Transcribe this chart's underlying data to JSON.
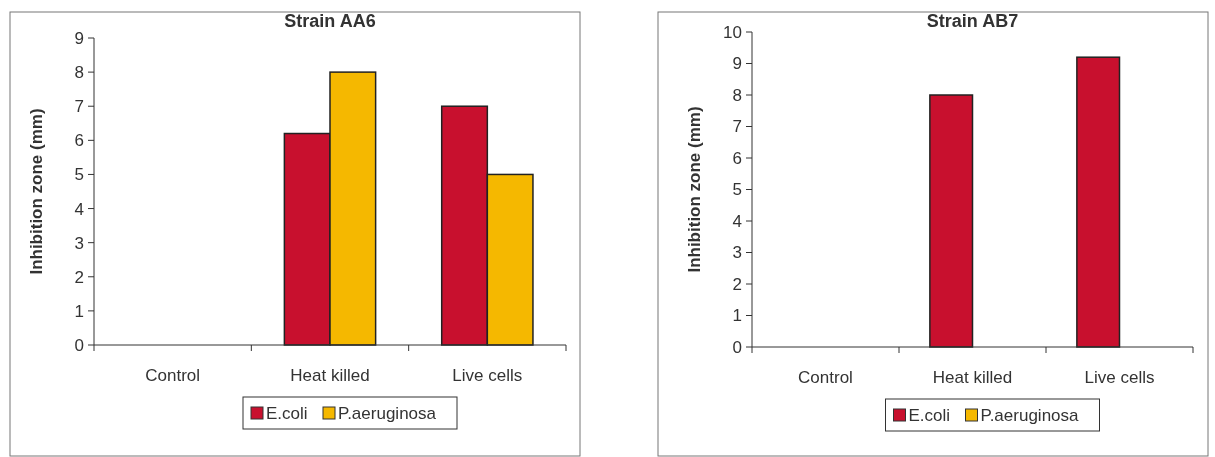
{
  "chart_data": [
    {
      "type": "bar",
      "title": "Strain AA6",
      "ylabel": "Inhibition zone (mm)",
      "categories": [
        "Control",
        "Heat killed",
        "Live cells"
      ],
      "series": [
        {
          "name": "E.coli",
          "color": "#c8102e",
          "values": [
            0,
            6.2,
            7.0
          ]
        },
        {
          "name": "P.aeruginosa",
          "color": "#f5b800",
          "values": [
            0,
            8.0,
            5.0
          ]
        }
      ],
      "ylim": [
        0,
        9
      ],
      "yticks": [
        0,
        1,
        2,
        3,
        4,
        5,
        6,
        7,
        8,
        9
      ],
      "legend": "bottom"
    },
    {
      "type": "bar",
      "title": "Strain AB7",
      "ylabel": "Inhibition zone (mm)",
      "categories": [
        "Control",
        "Heat killed",
        "Live cells"
      ],
      "series": [
        {
          "name": "E.coli",
          "color": "#c8102e",
          "values": [
            0,
            8.0,
            9.2
          ]
        },
        {
          "name": "P.aeruginosa",
          "color": "#f5b800",
          "values": [
            0,
            0,
            0
          ]
        }
      ],
      "ylim": [
        0,
        10
      ],
      "yticks": [
        0,
        1,
        2,
        3,
        4,
        5,
        6,
        7,
        8,
        9,
        10
      ],
      "legend": "bottom"
    }
  ]
}
